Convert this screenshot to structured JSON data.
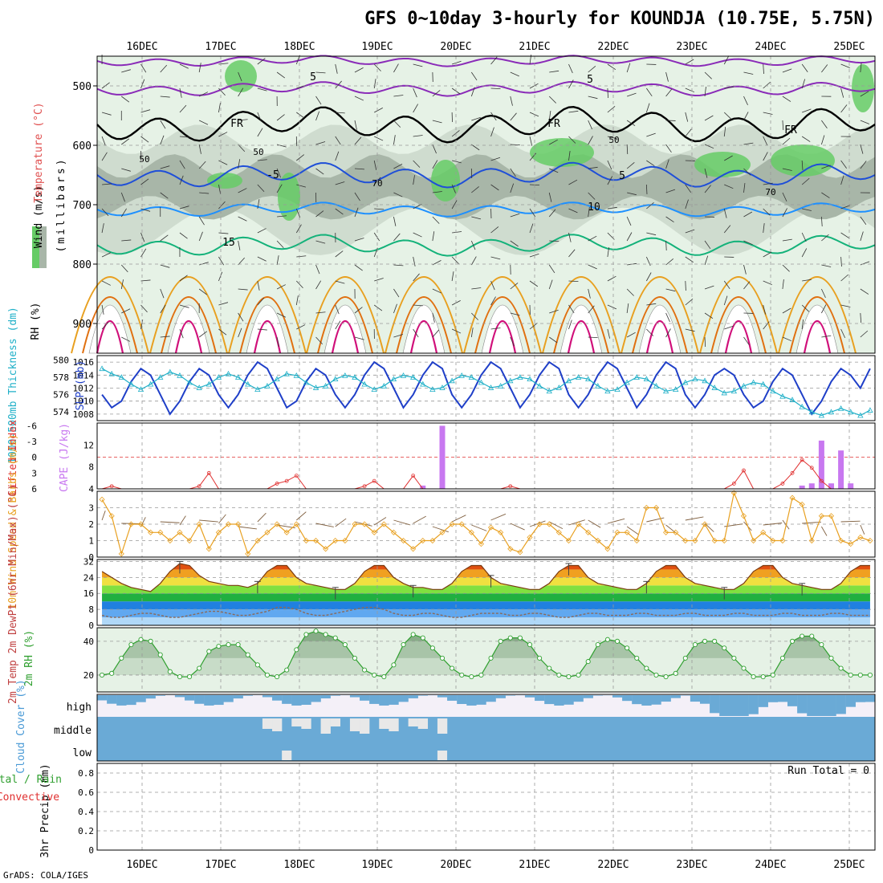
{
  "title": "GFS 0~10day 3-hourly for KOUNDJA (10.75E, 5.75N)",
  "credit": "GrADS: COLA/IGES",
  "colors": {
    "rh_dark": "#a8b6a8",
    "rh_mid": "#cfdccf",
    "rh_light": "#e6f2e6",
    "rh_green": "#66cc66",
    "temp_purple": "#8a2bb8",
    "temp_blue": "#1f4fd8",
    "temp_sky": "#1e90ff",
    "temp_teal": "#14b27a",
    "temp_orange": "#e8a020",
    "temp_dorange": "#e07010",
    "temp_magenta": "#d0107a",
    "slp_line": "#1f3fc8",
    "thick_line": "#20b0c8",
    "cape_bar": "#c878f0",
    "lifted_line": "#e03030",
    "wind_line": "#e8a020",
    "barb": "#806040",
    "rh2m_line": "#30a030",
    "cloud": "#6aaad6",
    "cloud_gap": "#e8e8e8"
  },
  "chart_data": {
    "x_axis": {
      "type": "time",
      "tick_labels": [
        "16DEC",
        "17DEC",
        "18DEC",
        "19DEC",
        "20DEC",
        "21DEC",
        "22DEC",
        "23DEC",
        "24DEC",
        "25DEC"
      ],
      "step_hours": 3,
      "points": 80
    },
    "panels": [
      {
        "name": "upper-air",
        "type": "contour",
        "ylabel": "(millibars)",
        "side_labels": [
          "Wind (m/s)",
          "Temperature (°C)",
          "RH (%)"
        ],
        "y_ticks": [
          500,
          600,
          700,
          800,
          900
        ],
        "ylim": [
          950,
          450
        ],
        "contour_labels": [
          "5",
          "5",
          "FR",
          "FR",
          "FR",
          "-5",
          "5",
          "10",
          "15",
          "50",
          "50",
          "50",
          "70",
          "70"
        ],
        "series": [
          {
            "name": "-5",
            "level_mb": 500
          },
          {
            "name": "0 (FR)",
            "level_mb": 560
          },
          {
            "name": "5",
            "level_mb": 650
          },
          {
            "name": "10",
            "level_mb": 705
          },
          {
            "name": "15",
            "level_mb": 760
          }
        ]
      },
      {
        "name": "slp-thickness",
        "type": "line",
        "left_label": "1000-500mb Thickness (dm)",
        "right_label": "SLP (mb)",
        "y_ticks_left": [
          574,
          576,
          578,
          580
        ],
        "y_ticks_right": [
          1008,
          1010,
          1012,
          1014,
          1016
        ],
        "series": [
          {
            "name": "SLP",
            "values": [
              1011,
              1009,
              1010,
              1013,
              1015,
              1014,
              1011,
              1008,
              1010,
              1013,
              1015,
              1014,
              1011,
              1009,
              1011,
              1014,
              1016,
              1015,
              1012,
              1009,
              1010,
              1013,
              1015,
              1014,
              1011,
              1009,
              1011,
              1014,
              1016,
              1015,
              1012,
              1009,
              1011,
              1014,
              1016,
              1015,
              1011,
              1009,
              1011,
              1014,
              1016,
              1015,
              1012,
              1009,
              1011,
              1014,
              1016,
              1015,
              1011,
              1009,
              1011,
              1014,
              1016,
              1015,
              1012,
              1009,
              1011,
              1014,
              1016,
              1015,
              1011,
              1009,
              1011,
              1014,
              1015,
              1014,
              1011,
              1009,
              1010,
              1013,
              1015,
              1014,
              1011,
              1008,
              1010,
              1013,
              1015,
              1014,
              1012,
              1015
            ]
          },
          {
            "name": "Thickness",
            "values": [
              579,
              578.4,
              578,
              577.2,
              576.6,
              577.2,
              578,
              578.6,
              578.2,
              577.4,
              576.8,
              577.2,
              578,
              578.4,
              578,
              577.2,
              576.6,
              577,
              577.8,
              578.4,
              578.2,
              577.4,
              576.8,
              577,
              577.8,
              578.2,
              578,
              577.2,
              576.6,
              577,
              577.8,
              578.2,
              578,
              577.2,
              576.6,
              576.8,
              577.6,
              578.2,
              578,
              577.4,
              576.8,
              577,
              577.6,
              578,
              577.8,
              577,
              576.4,
              576.8,
              577.6,
              578,
              577.8,
              577,
              576.4,
              576.6,
              577.4,
              578,
              577.8,
              577,
              576.4,
              576.6,
              577.4,
              577.8,
              577.6,
              576.8,
              576.2,
              576.4,
              577,
              577.4,
              577.2,
              576.4,
              575.8,
              575.4,
              574.6,
              574,
              573.6,
              574,
              574.4,
              574,
              573.6,
              574.2
            ]
          }
        ]
      },
      {
        "name": "cape-lifted",
        "type": "bar",
        "left_label": "Lifted Index",
        "right_label": "CAPE (J/kg)",
        "y_ticks_left": [
          "-6",
          "-3",
          "0",
          "3",
          "6"
        ],
        "y_ticks_right": [
          4,
          8,
          12
        ],
        "series": [
          {
            "name": "CAPE",
            "bars": [
              {
                "t": 33,
                "value": 4.6
              },
              {
                "t": 35,
                "value": 15.5
              },
              {
                "t": 72,
                "value": 4.6
              },
              {
                "t": 73,
                "value": 5
              },
              {
                "t": 74,
                "value": 12.8
              },
              {
                "t": 75,
                "value": 5
              },
              {
                "t": 76,
                "value": 11
              },
              {
                "t": 77,
                "value": 5
              }
            ]
          },
          {
            "name": "Lifted Index",
            "values": [
              6,
              5.5,
              6,
              6,
              6,
              6,
              6,
              6,
              6,
              6,
              5.5,
              3,
              6,
              6,
              6,
              6,
              6,
              6,
              5,
              4.5,
              3.5,
              6,
              6,
              6,
              6,
              6,
              6,
              5.5,
              4.5,
              6,
              6,
              6,
              3.5,
              6,
              6,
              6,
              6,
              6,
              6,
              6,
              6,
              6,
              5.5,
              6,
              6,
              6,
              6,
              6,
              6,
              6,
              6,
              6,
              6,
              6,
              6,
              6,
              6,
              6,
              6,
              6,
              6,
              6,
              6,
              6,
              6,
              5,
              2.5,
              6,
              6,
              6,
              5,
              3,
              0.5,
              2,
              4.5,
              6,
              6,
              6,
              6,
              6
            ]
          }
        ]
      },
      {
        "name": "10m-wind",
        "type": "line",
        "ylabel": "10m Wind Speed & Barbs (m/s)",
        "y_ticks": [
          0,
          1,
          2,
          3
        ],
        "series": [
          {
            "name": "Speed",
            "values": [
              3.5,
              2.5,
              0.2,
              2,
              2,
              1.5,
              1.5,
              1,
              1.5,
              1,
              2,
              0.5,
              1.5,
              2,
              2,
              0.2,
              1,
              1.5,
              2,
              1.5,
              2,
              1,
              1,
              0.5,
              1,
              1,
              2,
              2,
              1.5,
              2,
              1.5,
              1,
              0.5,
              1,
              1,
              1.5,
              2,
              2,
              1.5,
              0.8,
              1.8,
              1.5,
              0.5,
              0.3,
              1.2,
              2,
              2,
              1.5,
              1,
              2,
              1.5,
              1,
              0.5,
              1.5,
              1.5,
              1,
              3,
              3,
              1.5,
              1.5,
              1,
              1,
              2,
              1,
              1,
              3.9,
              2.5,
              1,
              1.5,
              1,
              1,
              3.6,
              3.2,
              1,
              2.5,
              2.5,
              1,
              0.8,
              1.2,
              1
            ]
          }
        ]
      },
      {
        "name": "2m-temp",
        "type": "area",
        "ylabel": "2m Temp 2m DewPt (6hr Min/Max) (°C)",
        "y_ticks": [
          0,
          8,
          16,
          24,
          32
        ],
        "series": [
          {
            "name": "2m Temp",
            "values": [
              27,
              24,
              21,
              19,
              18,
              17,
              21,
              27,
              31,
              30,
              25,
              22,
              21,
              20,
              20,
              19,
              21,
              27,
              30,
              30,
              24,
              21,
              20,
              19,
              18,
              18,
              21,
              27,
              30,
              30,
              24,
              21,
              19,
              19,
              18,
              18,
              21,
              27,
              30,
              30,
              24,
              21,
              20,
              19,
              18,
              18,
              21,
              27,
              30,
              30,
              24,
              21,
              20,
              19,
              18,
              18,
              21,
              27,
              30,
              30,
              24,
              21,
              20,
              19,
              18,
              18,
              21,
              27,
              30,
              30,
              24,
              21,
              20,
              19,
              18,
              18,
              21,
              27,
              30,
              30
            ]
          },
          {
            "name": "2m DewPt",
            "values": [
              5,
              4,
              4,
              5,
              6,
              6,
              5,
              4,
              4,
              5,
              6,
              7,
              7,
              6,
              5,
              5,
              6,
              7,
              9,
              9,
              8,
              6,
              5,
              5,
              6,
              7,
              8,
              9,
              9,
              8,
              6,
              5,
              5,
              6,
              6,
              5,
              4,
              4,
              5,
              6,
              6,
              6,
              5,
              5,
              6,
              6,
              5,
              4,
              4,
              5,
              6,
              6,
              5,
              5,
              5,
              6,
              6,
              5,
              5,
              5,
              6,
              6,
              5,
              5,
              5,
              6,
              6,
              5,
              5,
              5,
              6,
              6,
              5,
              5,
              5,
              6,
              6,
              5,
              5,
              5
            ]
          }
        ]
      },
      {
        "name": "2m-rh",
        "type": "area",
        "ylabel": "2m RH (%)",
        "y_ticks": [
          20,
          40
        ],
        "series": [
          {
            "name": "2m RH",
            "values": [
              20,
              21,
              30,
              38,
              41,
              40,
              32,
              22,
              19,
              19,
              24,
              34,
              37,
              38,
              38,
              32,
              26,
              20,
              19,
              23,
              35,
              44,
              46,
              44,
              42,
              38,
              30,
              23,
              20,
              19,
              26,
              38,
              44,
              42,
              36,
              30,
              24,
              20,
              19,
              20,
              30,
              40,
              42,
              42,
              38,
              30,
              24,
              20,
              19,
              20,
              28,
              38,
              41,
              40,
              36,
              30,
              24,
              20,
              19,
              21,
              30,
              38,
              40,
              40,
              36,
              30,
              24,
              19,
              19,
              20,
              30,
              40,
              43,
              43,
              38,
              30,
              24,
              20,
              20,
              20
            ]
          }
        ]
      },
      {
        "name": "cloud-cover",
        "type": "heatmap",
        "ylabel": "Cloud Cover (%)",
        "row_labels": [
          "high",
          "middle",
          "low"
        ]
      },
      {
        "name": "precip",
        "type": "bar",
        "ylabel": "3hr Precip (mm)",
        "side_labels": [
          "Total / Rain",
          "Convective"
        ],
        "y_ticks": [
          "0",
          "0.2",
          "0.4",
          "0.6",
          "0.8"
        ],
        "annotation": "Run Total = 0",
        "values": []
      }
    ]
  }
}
